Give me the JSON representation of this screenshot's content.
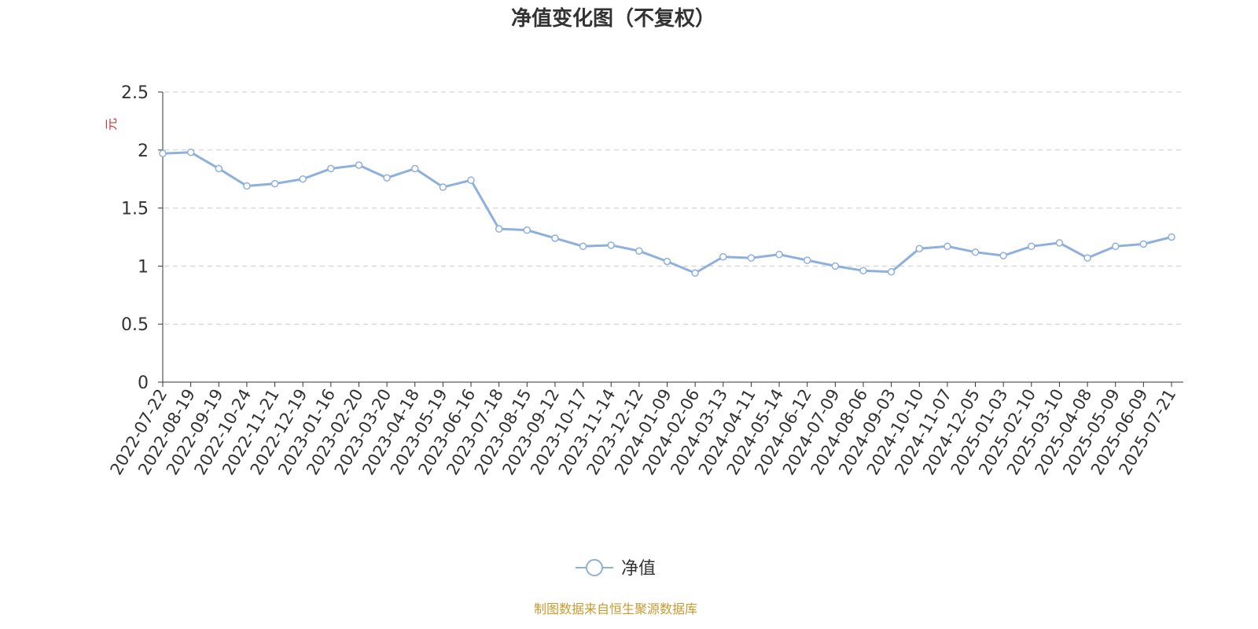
{
  "chart_data": {
    "type": "line",
    "title": "净值变化图（不复权）",
    "y_label": "元",
    "source": "制图数据来自恒生聚源数据库",
    "categories": [
      "2022-07-22",
      "2022-08-19",
      "2022-09-19",
      "2022-10-24",
      "2022-11-21",
      "2022-12-19",
      "2023-01-16",
      "2023-02-20",
      "2023-03-20",
      "2023-04-18",
      "2023-05-19",
      "2023-06-16",
      "2023-07-18",
      "2023-08-15",
      "2023-09-12",
      "2023-10-17",
      "2023-11-14",
      "2023-12-12",
      "2024-01-09",
      "2024-02-06",
      "2024-03-13",
      "2024-04-11",
      "2024-05-14",
      "2024-06-12",
      "2024-07-09",
      "2024-08-06",
      "2024-09-03",
      "2024-10-10",
      "2024-11-07",
      "2024-12-05",
      "2025-01-03",
      "2025-02-10",
      "2025-03-10",
      "2025-04-08",
      "2025-05-09",
      "2025-06-09",
      "2025-07-21"
    ],
    "series": [
      {
        "name": "净值",
        "color": "#8eb0dc",
        "values": [
          1.97,
          1.98,
          1.84,
          1.69,
          1.71,
          1.75,
          1.84,
          1.87,
          1.76,
          1.84,
          1.68,
          1.74,
          1.32,
          1.31,
          1.24,
          1.17,
          1.18,
          1.13,
          1.04,
          0.94,
          1.08,
          1.07,
          1.1,
          1.05,
          1.0,
          0.96,
          0.95,
          1.15,
          1.17,
          1.12,
          1.09,
          1.17,
          1.2,
          1.07,
          1.17,
          1.19,
          1.25
        ]
      }
    ],
    "ylim": [
      0,
      2.5
    ],
    "yticks": [
      0,
      0.5,
      1,
      1.5,
      2,
      2.5
    ],
    "grid": true
  }
}
